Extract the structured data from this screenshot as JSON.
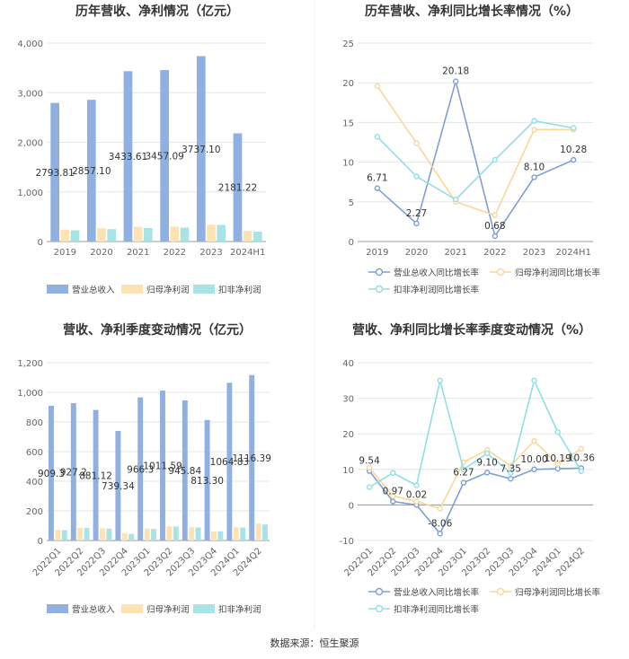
{
  "source": "数据来源：恒生聚源",
  "colors": {
    "revenue": "#8fb0e0",
    "netprofit": "#fde3b4",
    "deducted": "#a8e4e6",
    "revenue_line": "#7f9fd4",
    "netprofit_line": "#f9d79a",
    "deducted_line": "#91dfe5"
  },
  "chart_data": [
    {
      "id": "annual-revenue-profit",
      "type": "bar",
      "title": "历年营收、净利情况（亿元）",
      "categories": [
        "2019",
        "2020",
        "2021",
        "2022",
        "2023",
        "2024H1"
      ],
      "ylim": [
        0,
        4000
      ],
      "yticks": [
        "0",
        "1,000",
        "2,000",
        "3,000",
        "4,000"
      ],
      "ytick_values": [
        0,
        1000,
        2000,
        3000,
        4000
      ],
      "series": [
        {
          "name": "营业总收入",
          "key": "revenue",
          "values": [
            2793.81,
            2857.1,
            3433.61,
            3457.09,
            3737.1,
            2181.22
          ],
          "labels": [
            "2793.81",
            "2857.10",
            "3433.61",
            "3457.09",
            "3737.10",
            "2181.22"
          ]
        },
        {
          "name": "归母净利润",
          "key": "netprofit",
          "values": [
            240,
            270,
            295,
            300,
            340,
            215
          ]
        },
        {
          "name": "扣非净利润",
          "key": "deducted",
          "values": [
            225,
            250,
            272,
            280,
            335,
            200
          ]
        }
      ]
    },
    {
      "id": "annual-growth",
      "type": "line",
      "title": "历年营收、净利同比增长率情况（%）",
      "categories": [
        "2019",
        "2020",
        "2021",
        "2022",
        "2023",
        "2024H1"
      ],
      "ylim": [
        0,
        25
      ],
      "yticks": [
        "0",
        "5",
        "10",
        "15",
        "20",
        "25"
      ],
      "ytick_values": [
        0,
        5,
        10,
        15,
        20,
        25
      ],
      "series": [
        {
          "name": "营业总收入同比增长率",
          "key": "revenue",
          "values": [
            6.71,
            2.27,
            20.18,
            0.68,
            8.1,
            10.28
          ],
          "labels": [
            "6.71",
            "2.27",
            "20.18",
            "0.68",
            "8.10",
            "10.28"
          ]
        },
        {
          "name": "归母净利润同比增长率",
          "key": "netprofit",
          "values": [
            19.6,
            12.4,
            5.0,
            3.3,
            14.1,
            14.1
          ]
        },
        {
          "name": "扣非净利润同比增长率",
          "key": "deducted",
          "values": [
            13.2,
            8.2,
            5.3,
            10.3,
            15.2,
            14.3
          ]
        }
      ]
    },
    {
      "id": "quarterly-revenue-profit",
      "type": "bar",
      "title": "营收、净利季度变动情况（亿元）",
      "categories": [
        "2022Q1",
        "2022Q2",
        "2022Q3",
        "2022Q4",
        "2023Q1",
        "2023Q2",
        "2023Q3",
        "2023Q4",
        "2024Q1",
        "2024Q2"
      ],
      "ylim": [
        0,
        1200
      ],
      "yticks": [
        "0",
        "200",
        "400",
        "600",
        "800",
        "1,000",
        "1,200"
      ],
      "ytick_values": [
        0,
        200,
        400,
        600,
        800,
        1000,
        1200
      ],
      "series": [
        {
          "name": "营业总收入",
          "key": "revenue",
          "values": [
            909.3,
            927.2,
            881.12,
            739.34,
            966.3,
            1011.59,
            945.84,
            813.3,
            1064.83,
            1116.39
          ],
          "labels": [
            "909.3",
            "927.2",
            "881.12",
            "739.34",
            "966.3",
            "1011.59",
            "945.84",
            "813.30",
            "1064.83",
            "1116.39"
          ]
        },
        {
          "name": "归母净利润",
          "key": "netprofit",
          "values": [
            72,
            85,
            82,
            50,
            80,
            95,
            90,
            60,
            90,
            115
          ]
        },
        {
          "name": "扣非净利润",
          "key": "deducted",
          "values": [
            70,
            84,
            80,
            45,
            78,
            94,
            88,
            62,
            88,
            108
          ]
        }
      ]
    },
    {
      "id": "quarterly-growth",
      "type": "line",
      "title": "营收、净利同比增长率季度变动情况（%）",
      "categories": [
        "2022Q1",
        "2022Q2",
        "2022Q3",
        "2022Q4",
        "2023Q1",
        "2023Q2",
        "2023Q3",
        "2023Q4",
        "2024Q1",
        "2024Q2"
      ],
      "ylim": [
        -10,
        40
      ],
      "yticks": [
        "-10",
        "0",
        "10",
        "20",
        "30",
        "40"
      ],
      "ytick_values": [
        -10,
        0,
        10,
        20,
        30,
        40
      ],
      "series": [
        {
          "name": "营业总收入同比增长率",
          "key": "revenue",
          "values": [
            9.54,
            0.97,
            0.02,
            -8.06,
            6.27,
            9.1,
            7.35,
            10.0,
            10.19,
            10.36
          ],
          "labels": [
            "9.54",
            "0.97",
            "0.02",
            "-8.06",
            "6.27",
            "9.10",
            "7.35",
            "10.00",
            "10.19",
            "10.36"
          ]
        },
        {
          "name": "归母净利润同比增长率",
          "key": "netprofit",
          "values": [
            10.5,
            2.5,
            1.0,
            -1.0,
            12.0,
            15.5,
            11.0,
            18.0,
            11.5,
            15.8
          ]
        },
        {
          "name": "扣非净利润同比增长率",
          "key": "deducted",
          "values": [
            5.0,
            9.0,
            5.5,
            35.0,
            10.0,
            14.5,
            9.0,
            35.0,
            20.5,
            9.5
          ]
        }
      ]
    }
  ]
}
